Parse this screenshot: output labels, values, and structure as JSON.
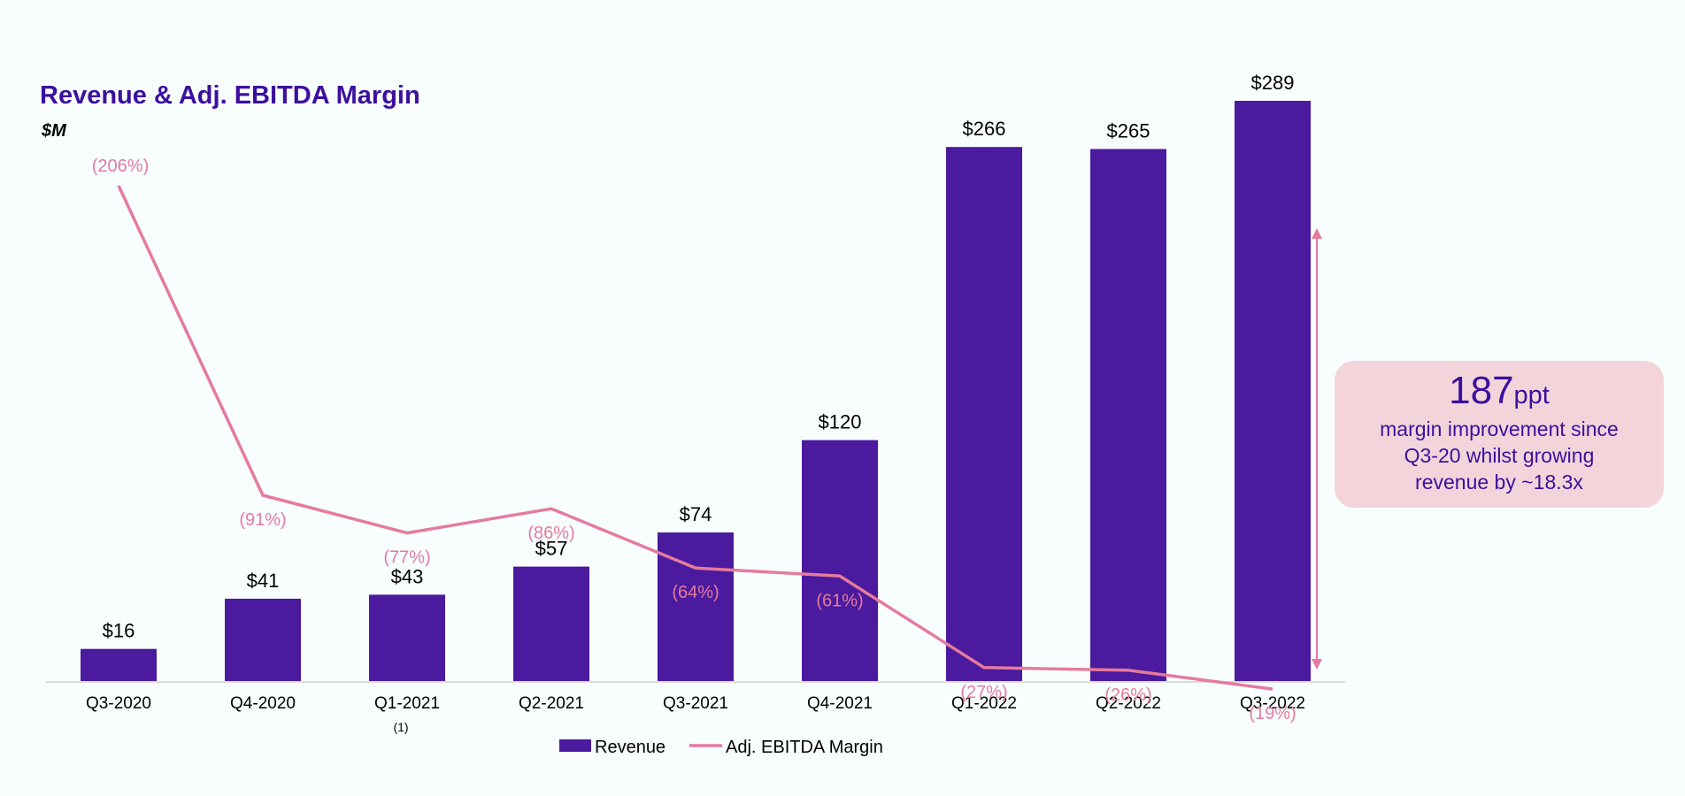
{
  "header": {
    "title": "Revenue & Adj. EBITDA Margin",
    "unit": "$M"
  },
  "callout": {
    "value": "187",
    "suffix": "ppt",
    "text": "margin improvement since Q3-20 whilst growing revenue by ~18.3x"
  },
  "footnote": {
    "label": "(1)",
    "category": "Q1-2021"
  },
  "colors": {
    "revenue_bar": "#4b1a9e",
    "margin_line": "#e57b9c",
    "margin_label": "#e57b9c",
    "callout_bg": "#f4d4db",
    "title": "#3d0f9e"
  },
  "chart_data": {
    "type": "bar",
    "categories": [
      "Q3-2020",
      "Q4-2020",
      "Q1-2021",
      "Q2-2021",
      "Q3-2021",
      "Q4-2021",
      "Q1-2022",
      "Q2-2022",
      "Q3-2022"
    ],
    "series": [
      {
        "name": "Revenue",
        "type": "bar",
        "values": [
          16,
          41,
          43,
          57,
          74,
          120,
          266,
          265,
          289
        ],
        "labels": [
          "$16",
          "$41",
          "$43",
          "$57",
          "$74",
          "$120",
          "$266",
          "$265",
          "$289"
        ]
      },
      {
        "name": "Adj. EBITDA Margin",
        "type": "line",
        "values": [
          -206,
          -91,
          -77,
          -86,
          -64,
          -61,
          -27,
          -26,
          -19
        ],
        "labels": [
          "(206%)",
          "(91%)",
          "(77%)",
          "(86%)",
          "(64%)",
          "(61%)",
          "(27%)",
          "(26%)",
          "(19%)"
        ]
      }
    ],
    "ylim": [
      0,
      289
    ],
    "margin_ylim": [
      -206,
      0
    ],
    "grid": false,
    "legend_position": "bottom-center",
    "annotation": {
      "type": "arrow",
      "at_category": "Q3-2022",
      "from": -206,
      "to": -19
    }
  }
}
